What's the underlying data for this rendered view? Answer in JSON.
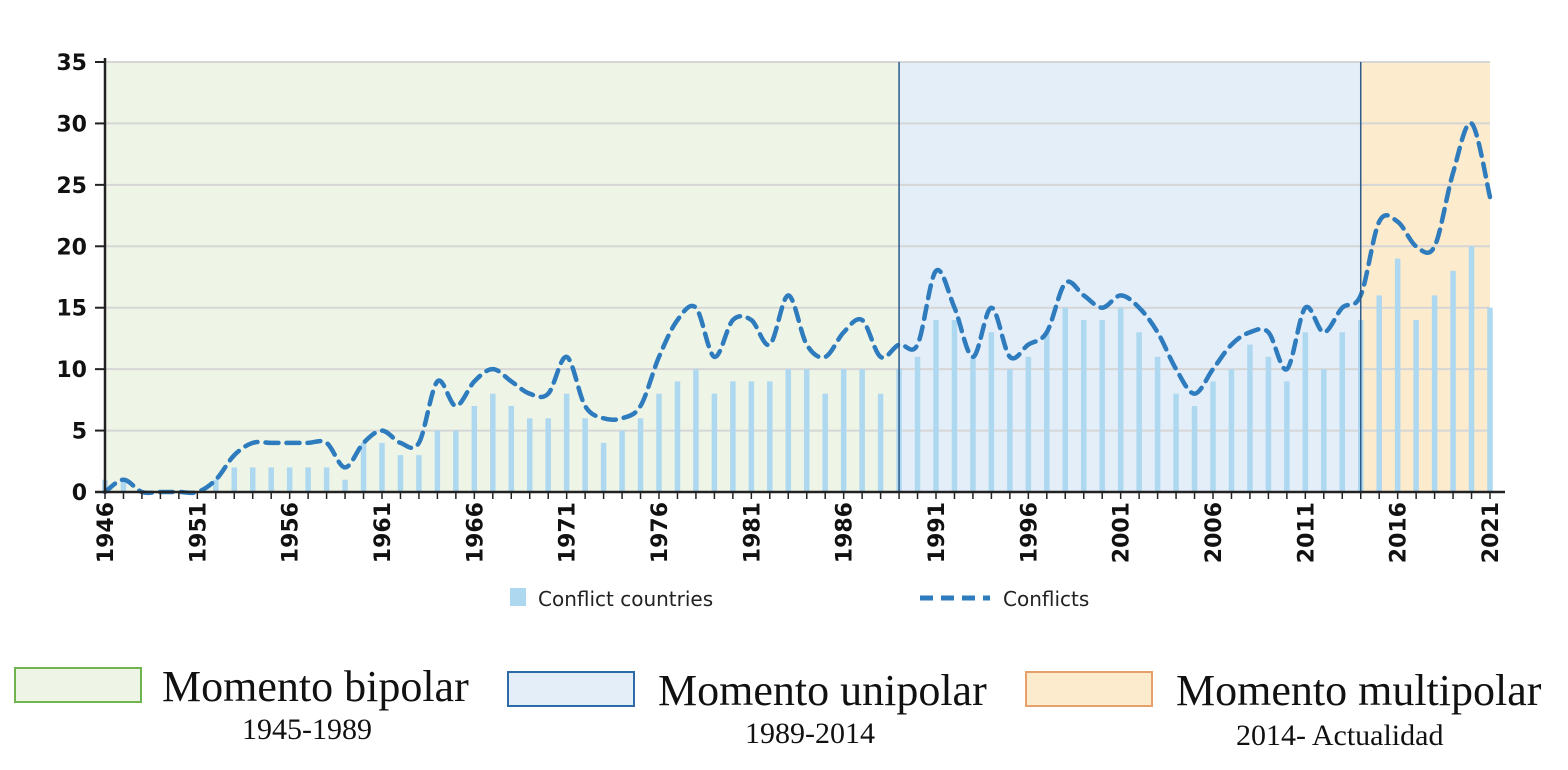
{
  "chart_data": {
    "type": "bar",
    "years": [
      1946,
      1947,
      1948,
      1949,
      1950,
      1951,
      1952,
      1953,
      1954,
      1955,
      1956,
      1957,
      1958,
      1959,
      1960,
      1961,
      1962,
      1963,
      1964,
      1965,
      1966,
      1967,
      1968,
      1969,
      1970,
      1971,
      1972,
      1973,
      1974,
      1975,
      1976,
      1977,
      1978,
      1979,
      1980,
      1981,
      1982,
      1983,
      1984,
      1985,
      1986,
      1987,
      1988,
      1989,
      1990,
      1991,
      1992,
      1993,
      1994,
      1995,
      1996,
      1997,
      1998,
      1999,
      2000,
      2001,
      2002,
      2003,
      2004,
      2005,
      2006,
      2007,
      2008,
      2009,
      2010,
      2011,
      2012,
      2013,
      2014,
      2015,
      2016,
      2017,
      2018,
      2019,
      2020,
      2021
    ],
    "x_tick_labels": [
      "1946",
      "1951",
      "1956",
      "1961",
      "1966",
      "1971",
      "1976",
      "1981",
      "1986",
      "1991",
      "1996",
      "2001",
      "2006",
      "2011",
      "2016",
      "2021"
    ],
    "y_tick_labels": [
      "0",
      "5",
      "10",
      "15",
      "20",
      "25",
      "30",
      "35"
    ],
    "ylim": [
      0,
      35
    ],
    "grid": true,
    "series": [
      {
        "name": "Conflict countries",
        "kind": "bar",
        "color": "#aed8f0",
        "values": [
          1,
          1,
          0,
          0,
          0,
          0,
          1,
          2,
          2,
          2,
          2,
          2,
          2,
          1,
          4,
          4,
          3,
          3,
          5,
          5,
          7,
          8,
          7,
          6,
          6,
          8,
          6,
          4,
          5,
          6,
          8,
          9,
          10,
          8,
          9,
          9,
          9,
          10,
          10,
          8,
          10,
          10,
          8,
          10,
          11,
          14,
          14,
          11,
          13,
          10,
          11,
          13,
          15,
          14,
          14,
          15,
          13,
          11,
          8,
          7,
          9,
          10,
          12,
          11,
          9,
          13,
          10,
          13,
          14,
          16,
          19,
          14,
          16,
          18,
          20,
          15
        ]
      },
      {
        "name": "Conflicts",
        "kind": "line",
        "style": "dashed",
        "color": "#2e7bbd",
        "values": [
          0,
          1,
          0,
          0,
          0,
          0,
          1,
          3,
          4,
          4,
          4,
          4,
          4,
          2,
          4,
          5,
          4,
          4,
          9,
          7,
          9,
          10,
          9,
          8,
          8,
          11,
          7,
          6,
          6,
          7,
          11,
          14,
          15,
          11,
          14,
          14,
          12,
          16,
          12,
          11,
          13,
          14,
          11,
          12,
          12,
          18,
          15,
          11,
          15,
          11,
          12,
          13,
          17,
          16,
          15,
          16,
          15,
          13,
          10,
          8,
          10,
          12,
          13,
          13,
          10,
          15,
          13,
          15,
          16,
          22,
          22,
          20,
          20,
          26,
          30,
          24
        ]
      }
    ],
    "periods": [
      {
        "label": "Momento bipolar",
        "range_text": "1945-1989",
        "start": 1946,
        "end": 1989,
        "fill": "#eef5e6",
        "border": "#6fb44f"
      },
      {
        "label": "Momento unipolar",
        "range_text": "1989-2014",
        "start": 1989,
        "end": 2014,
        "fill": "#e3eef9",
        "border": "#2d6aa8"
      },
      {
        "label": "Momento multipolar",
        "range_text": "2014- Actualidad",
        "start": 2014,
        "end": 2021,
        "fill": "#fcebcd",
        "border": "#e8a06a"
      }
    ]
  }
}
